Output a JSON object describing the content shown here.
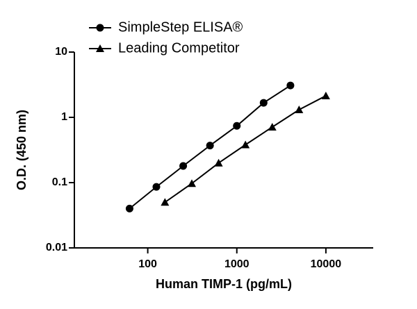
{
  "chart_data": {
    "type": "line",
    "x_label": "Human TIMP-1 (pg/mL)",
    "y_label": "O.D. (450 nm)",
    "x_scale": "log",
    "y_scale": "log",
    "xlim": [
      15,
      34000
    ],
    "xticks": [
      100,
      1000,
      10000
    ],
    "ylim": [
      0.01,
      10
    ],
    "yticks": [
      0.01,
      0.1,
      1,
      10
    ],
    "legend": "upper-left",
    "series": [
      {
        "name": "SimpleStep ELISA®",
        "color": "#000000",
        "marker": "circle",
        "x": [
          62.5,
          125,
          250,
          500,
          1000,
          2000,
          4000
        ],
        "values": [
          0.04,
          0.086,
          0.18,
          0.37,
          0.74,
          1.67,
          3.08
        ]
      },
      {
        "name": "Leading Competitor",
        "color": "#000000",
        "marker": "triangle",
        "x": [
          156,
          312.5,
          625,
          1250,
          2500,
          5000,
          10000
        ],
        "values": [
          0.05,
          0.097,
          0.2,
          0.38,
          0.71,
          1.31,
          2.14
        ]
      }
    ]
  }
}
